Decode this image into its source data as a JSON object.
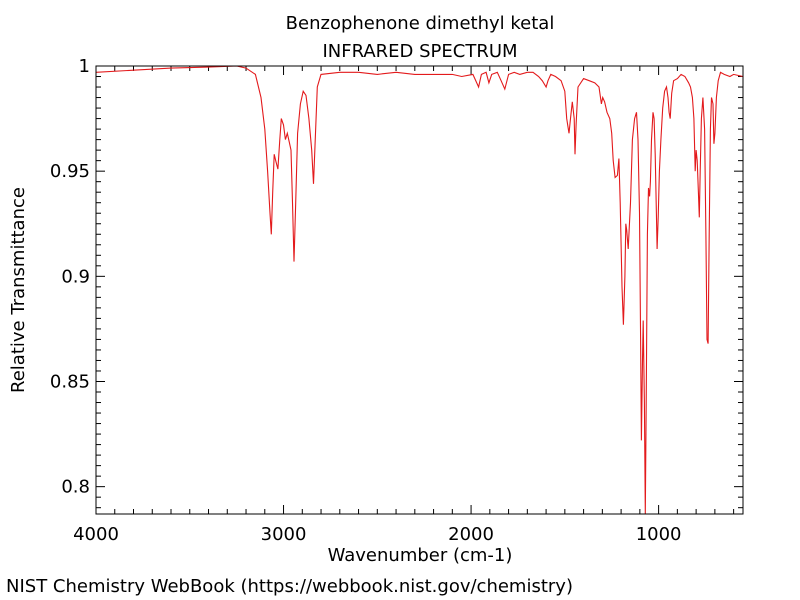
{
  "chart_data": {
    "type": "line",
    "title": "Benzophenone dimethyl ketal",
    "subtitle": "INFRARED SPECTRUM",
    "xlabel": "Wavenumber (cm-1)",
    "ylabel": "Relative Transmittance",
    "xlim": [
      4000,
      550
    ],
    "ylim": [
      0.787,
      1.0
    ],
    "x_reversed": true,
    "grid": false,
    "legend": "none",
    "x_ticks": [
      4000,
      3000,
      2000,
      1000
    ],
    "x_tick_labels": [
      "4000",
      "3000",
      "2000",
      "1000"
    ],
    "y_ticks": [
      1.0,
      0.95,
      0.9,
      0.85,
      0.8
    ],
    "y_tick_labels": [
      "1",
      "0.95",
      "0.9",
      "0.85",
      "0.8"
    ],
    "series": [
      {
        "color": "#e31a1c",
        "points": [
          [
            4000,
            0.997
          ],
          [
            3800,
            0.998
          ],
          [
            3600,
            0.999
          ],
          [
            3400,
            0.9995
          ],
          [
            3250,
            1.0
          ],
          [
            3200,
            0.999
          ],
          [
            3150,
            0.996
          ],
          [
            3120,
            0.985
          ],
          [
            3100,
            0.97
          ],
          [
            3085,
            0.95
          ],
          [
            3072,
            0.93
          ],
          [
            3065,
            0.92
          ],
          [
            3058,
            0.94
          ],
          [
            3050,
            0.958
          ],
          [
            3042,
            0.955
          ],
          [
            3030,
            0.951
          ],
          [
            3020,
            0.965
          ],
          [
            3012,
            0.975
          ],
          [
            3000,
            0.972
          ],
          [
            2990,
            0.965
          ],
          [
            2980,
            0.968
          ],
          [
            2970,
            0.964
          ],
          [
            2960,
            0.96
          ],
          [
            2952,
            0.935
          ],
          [
            2944,
            0.907
          ],
          [
            2935,
            0.935
          ],
          [
            2925,
            0.968
          ],
          [
            2910,
            0.982
          ],
          [
            2895,
            0.988
          ],
          [
            2880,
            0.986
          ],
          [
            2865,
            0.975
          ],
          [
            2850,
            0.96
          ],
          [
            2840,
            0.944
          ],
          [
            2832,
            0.962
          ],
          [
            2820,
            0.99
          ],
          [
            2800,
            0.996
          ],
          [
            2700,
            0.997
          ],
          [
            2600,
            0.997
          ],
          [
            2500,
            0.996
          ],
          [
            2400,
            0.997
          ],
          [
            2300,
            0.996
          ],
          [
            2200,
            0.996
          ],
          [
            2100,
            0.996
          ],
          [
            2050,
            0.995
          ],
          [
            1990,
            0.996
          ],
          [
            1960,
            0.99
          ],
          [
            1945,
            0.996
          ],
          [
            1920,
            0.997
          ],
          [
            1905,
            0.992
          ],
          [
            1890,
            0.996
          ],
          [
            1860,
            0.997
          ],
          [
            1840,
            0.993
          ],
          [
            1820,
            0.989
          ],
          [
            1800,
            0.996
          ],
          [
            1770,
            0.997
          ],
          [
            1740,
            0.996
          ],
          [
            1700,
            0.997
          ],
          [
            1670,
            0.997
          ],
          [
            1640,
            0.995
          ],
          [
            1620,
            0.993
          ],
          [
            1600,
            0.99
          ],
          [
            1590,
            0.993
          ],
          [
            1575,
            0.996
          ],
          [
            1550,
            0.995
          ],
          [
            1520,
            0.993
          ],
          [
            1500,
            0.988
          ],
          [
            1490,
            0.975
          ],
          [
            1478,
            0.968
          ],
          [
            1470,
            0.975
          ],
          [
            1460,
            0.983
          ],
          [
            1450,
            0.975
          ],
          [
            1446,
            0.958
          ],
          [
            1440,
            0.972
          ],
          [
            1430,
            0.99
          ],
          [
            1400,
            0.994
          ],
          [
            1370,
            0.993
          ],
          [
            1340,
            0.992
          ],
          [
            1318,
            0.99
          ],
          [
            1305,
            0.982
          ],
          [
            1298,
            0.985
          ],
          [
            1288,
            0.983
          ],
          [
            1275,
            0.978
          ],
          [
            1260,
            0.975
          ],
          [
            1250,
            0.968
          ],
          [
            1242,
            0.955
          ],
          [
            1232,
            0.947
          ],
          [
            1220,
            0.948
          ],
          [
            1212,
            0.956
          ],
          [
            1205,
            0.935
          ],
          [
            1195,
            0.895
          ],
          [
            1188,
            0.877
          ],
          [
            1180,
            0.9
          ],
          [
            1175,
            0.925
          ],
          [
            1170,
            0.922
          ],
          [
            1162,
            0.913
          ],
          [
            1150,
            0.935
          ],
          [
            1140,
            0.965
          ],
          [
            1128,
            0.975
          ],
          [
            1118,
            0.978
          ],
          [
            1110,
            0.965
          ],
          [
            1102,
            0.93
          ],
          [
            1096,
            0.87
          ],
          [
            1092,
            0.822
          ],
          [
            1086,
            0.86
          ],
          [
            1082,
            0.879
          ],
          [
            1076,
            0.84
          ],
          [
            1071,
            0.787
          ],
          [
            1066,
            0.84
          ],
          [
            1060,
            0.92
          ],
          [
            1054,
            0.942
          ],
          [
            1048,
            0.938
          ],
          [
            1044,
            0.945
          ],
          [
            1038,
            0.965
          ],
          [
            1030,
            0.978
          ],
          [
            1024,
            0.975
          ],
          [
            1018,
            0.958
          ],
          [
            1012,
            0.93
          ],
          [
            1008,
            0.913
          ],
          [
            1002,
            0.928
          ],
          [
            996,
            0.95
          ],
          [
            988,
            0.965
          ],
          [
            978,
            0.98
          ],
          [
            968,
            0.988
          ],
          [
            958,
            0.99
          ],
          [
            950,
            0.985
          ],
          [
            944,
            0.978
          ],
          [
            938,
            0.975
          ],
          [
            930,
            0.987
          ],
          [
            920,
            0.993
          ],
          [
            900,
            0.994
          ],
          [
            880,
            0.996
          ],
          [
            860,
            0.995
          ],
          [
            840,
            0.992
          ],
          [
            830,
            0.99
          ],
          [
            820,
            0.985
          ],
          [
            812,
            0.975
          ],
          [
            805,
            0.95
          ],
          [
            800,
            0.96
          ],
          [
            794,
            0.955
          ],
          [
            788,
            0.94
          ],
          [
            783,
            0.928
          ],
          [
            778,
            0.95
          ],
          [
            772,
            0.975
          ],
          [
            764,
            0.985
          ],
          [
            755,
            0.97
          ],
          [
            748,
            0.92
          ],
          [
            742,
            0.87
          ],
          [
            736,
            0.868
          ],
          [
            730,
            0.92
          ],
          [
            724,
            0.97
          ],
          [
            718,
            0.985
          ],
          [
            710,
            0.982
          ],
          [
            705,
            0.963
          ],
          [
            700,
            0.968
          ],
          [
            692,
            0.985
          ],
          [
            682,
            0.993
          ],
          [
            670,
            0.997
          ],
          [
            650,
            0.996
          ],
          [
            620,
            0.995
          ],
          [
            600,
            0.996
          ],
          [
            550,
            0.995
          ]
        ]
      }
    ]
  },
  "footer": {
    "credit": "NIST Chemistry WebBook (https://webbook.nist.gov/chemistry)"
  }
}
